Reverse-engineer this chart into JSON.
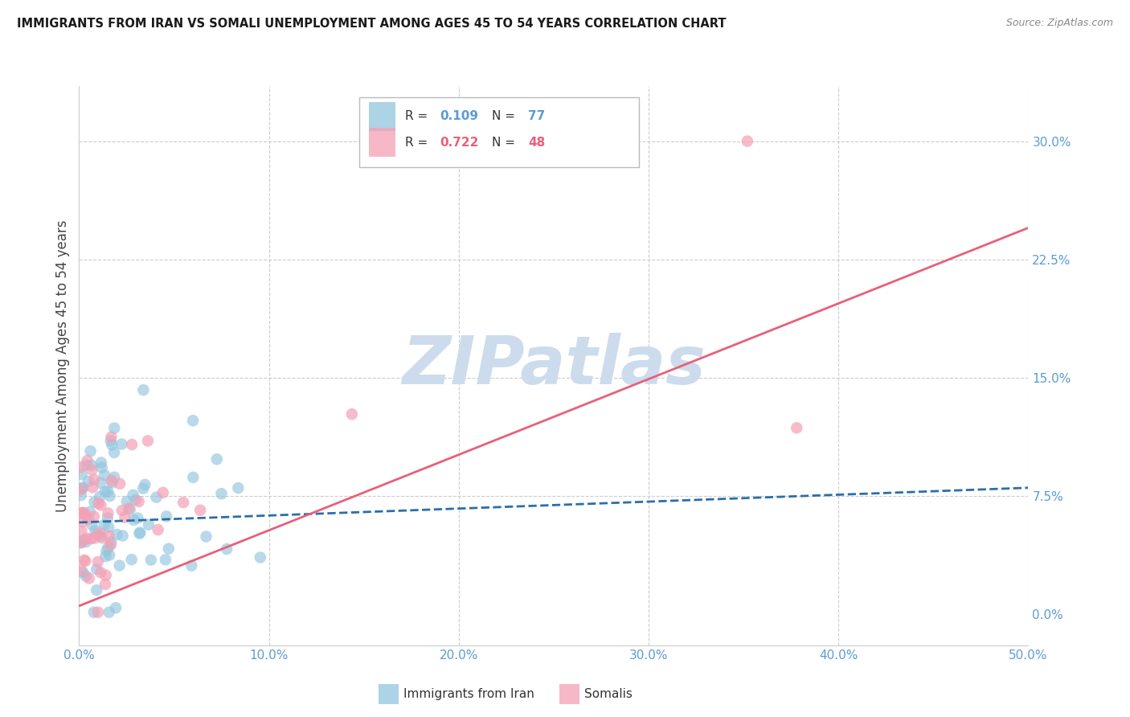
{
  "title": "IMMIGRANTS FROM IRAN VS SOMALI UNEMPLOYMENT AMONG AGES 45 TO 54 YEARS CORRELATION CHART",
  "source": "Source: ZipAtlas.com",
  "ylabel": "Unemployment Among Ages 45 to 54 years",
  "xmin": 0.0,
  "xmax": 0.5,
  "ymin": -0.02,
  "ymax": 0.335,
  "iran_R": 0.109,
  "iran_N": 77,
  "somali_R": 0.722,
  "somali_N": 48,
  "iran_color": "#92c5de",
  "somali_color": "#f4a0b5",
  "iran_line_color": "#2b6fa8",
  "somali_line_color": "#e8607a",
  "legend_label1": "Immigrants from Iran",
  "legend_label2": "Somalis",
  "watermark_text": "ZIPatlas",
  "watermark_color": "#ccdcec",
  "background_color": "#ffffff",
  "tick_color": "#5b9bd5",
  "grid_color": "#cccccc",
  "title_color": "#1a1a1a",
  "ylabel_color": "#444444",
  "source_color": "#888888",
  "iran_trend_x0": 0.0,
  "iran_trend_x1": 0.5,
  "iran_trend_y0": 0.058,
  "iran_trend_y1": 0.08,
  "somali_trend_x0": 0.0,
  "somali_trend_x1": 0.5,
  "somali_trend_y0": 0.005,
  "somali_trend_y1": 0.245
}
